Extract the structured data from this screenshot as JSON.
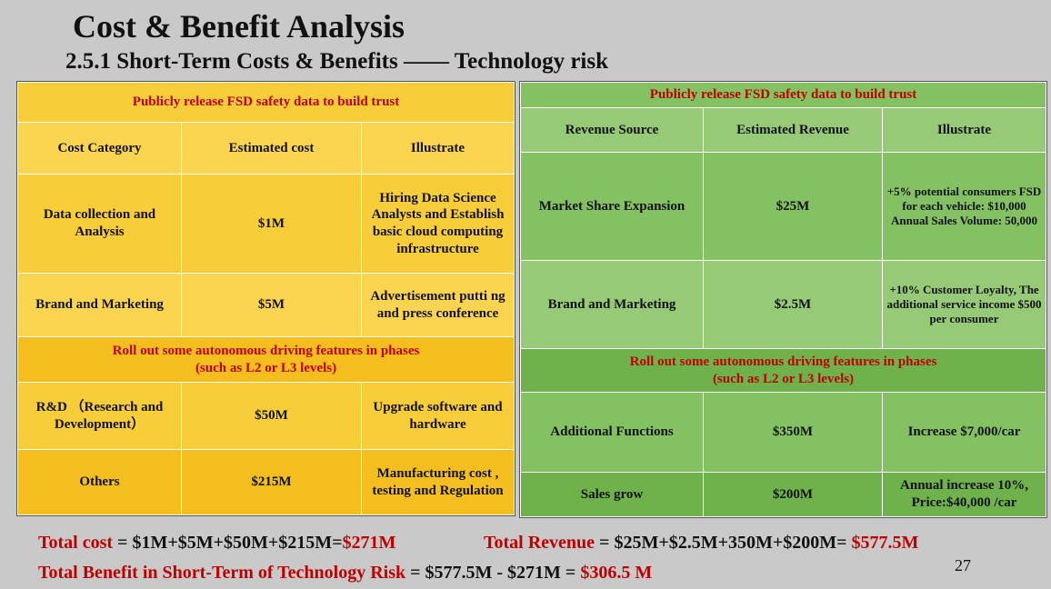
{
  "title": "Cost & Benefit Analysis",
  "subtitle": "2.5.1 Short-Term Costs & Benefits —— Technology risk",
  "cost_table": {
    "section1": "Publicly release FSD safety data to build trust",
    "headers": [
      "Cost Category",
      "Estimated cost",
      "Illustrate"
    ],
    "rows1": [
      {
        "category": "Data collection and Analysis",
        "cost": "$1M",
        "illustrate": "Hiring Data Science Analysts and Establish basic cloud computing infrastructure"
      },
      {
        "category": "Brand and Marketing",
        "cost": "$5M",
        "illustrate": "Advertisement putti ng and press conference"
      }
    ],
    "section2_line1": "Roll out some autonomous driving features in phases",
    "section2_line2": "(such as L2 or L3 levels)",
    "rows2": [
      {
        "category": "R&D （Research and Development）",
        "cost": "$50M",
        "illustrate": "Upgrade software and hardware"
      },
      {
        "category": "Others",
        "cost": "$215M",
        "illustrate": "Manufacturing cost , testing and Regulation"
      }
    ]
  },
  "revenue_table": {
    "section1": "Publicly release FSD safety data to build trust",
    "headers": [
      "Revenue Source",
      "Estimated Revenue",
      "Illustrate"
    ],
    "rows1": [
      {
        "source": "Market Share Expansion",
        "revenue": "$25M",
        "illustrate": "+5% potential consumers FSD for each vehicle: $10,000 Annual Sales Volume: 50,000"
      },
      {
        "source": "Brand and Marketing",
        "revenue": "$2.5M",
        "illustrate": "+10% Customer Loyalty, The additional service income $500 per consumer"
      }
    ],
    "section2_line1": "Roll out some autonomous driving features in phases",
    "section2_line2": "(such as L2 or L3 levels)",
    "rows2": [
      {
        "source": "Additional Functions",
        "revenue": "$350M",
        "illustrate": "Increase $7,000/car"
      },
      {
        "source": "Sales grow",
        "revenue": "$200M",
        "illustrate": "Annual increase 10%, Price:$40,000 /car"
      }
    ]
  },
  "totals": {
    "cost_label": "Total cost",
    "cost_formula": " = $1M+$5M+$50M+$215M=",
    "cost_result": "$271M",
    "revenue_label": "Total Revenue",
    "revenue_formula": " = $25M+$2.5M+350M+$200M= ",
    "revenue_result": "$577.5M",
    "benefit_label": "Total Benefit in Short-Term of Technology Risk",
    "benefit_formula": " = $577.5M - $271M = ",
    "benefit_result": "$306.5 M"
  },
  "page_number": "27",
  "colors": {
    "accent_red": "#c00000",
    "yellow": "#f8cd3a",
    "green": "#84c162"
  }
}
